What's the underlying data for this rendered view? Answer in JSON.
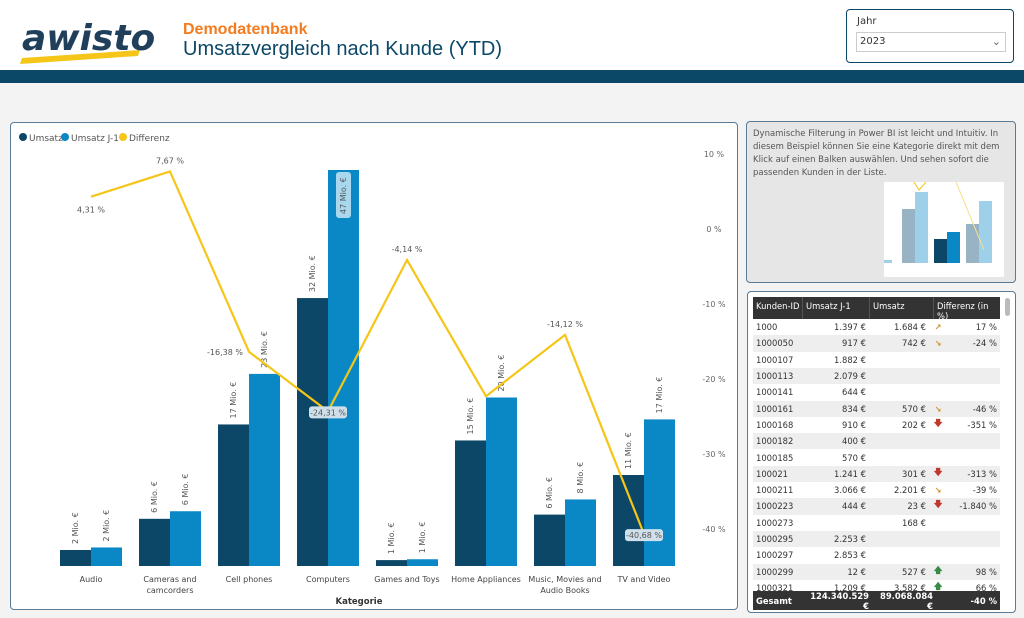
{
  "header": {
    "logo_text": "awisto",
    "subtitle": "Demodatenbank",
    "title": "Umsatzvergleich nach Kunde (YTD)"
  },
  "slicer": {
    "label": "Jahr",
    "value": "2023"
  },
  "info": {
    "text": "Dynamische Filterung in Power BI ist leicht und Intuitiv. In diesem Beispiel können Sie eine Kategorie direkt mit dem Klick auf einen Balken auswählen. Und sehen sofort die passenden Kunden in der Liste."
  },
  "colors": {
    "umsatz": "#0d4767",
    "umsatz_j1": "#0a88c6",
    "differenz": "#f5c518",
    "header_bar": "#0b4868",
    "accent": "#f47c20"
  },
  "chart_data": {
    "type": "bar+line",
    "xlabel": "Kategorie",
    "legend": [
      "Umsatz",
      "Umsatz J-1",
      "Differenz"
    ],
    "legend_position": "top-left",
    "categories": [
      "Audio",
      "Cameras and camcorders",
      "Cell phones",
      "Computers",
      "Games and Toys",
      "Home Appliances",
      "Music, Movies and Audio Books",
      "TV and Video"
    ],
    "series": [
      {
        "name": "Umsatz",
        "unit": "Mio. €",
        "values": [
          1.9,
          5.6,
          16.8,
          31.8,
          0.7,
          14.9,
          6.1,
          10.8
        ],
        "labels": [
          "2 Mio. €",
          "6 Mio. €",
          "17 Mio. €",
          "32 Mio. €",
          "1 Mio. €",
          "15 Mio. €",
          "6 Mio. €",
          "11 Mio. €"
        ]
      },
      {
        "name": "Umsatz J-1",
        "unit": "Mio. €",
        "values": [
          2.2,
          6.5,
          22.8,
          47,
          0.8,
          20,
          7.9,
          17.4
        ],
        "labels": [
          "2 Mio. €",
          "6 Mio. €",
          "23 Mio. €",
          "47 Mio. €",
          "1 Mio. €",
          "20 Mio. €",
          "8 Mio. €",
          "17 Mio. €"
        ]
      },
      {
        "name": "Differenz",
        "unit": "%",
        "axis": "right",
        "values": [
          4.31,
          7.67,
          -16.38,
          -24.31,
          -4.14,
          -22.3,
          -14.12,
          -40.68
        ],
        "labels": [
          "4,31 %",
          "7,67 %",
          "-16,38 %",
          "-24,31 %",
          "-4,14 %",
          "",
          "-14,12 %",
          "-40,68 %"
        ]
      }
    ],
    "y_bar_range": [
      0,
      47
    ],
    "y_right_range": [
      -45,
      13
    ],
    "y_right_ticks": [
      10,
      0,
      -10,
      -20,
      -30,
      -40
    ],
    "y_right_tick_labels": [
      "10 %",
      "0 %",
      "-10 %",
      "-20 %",
      "-30 %",
      "-40 %"
    ]
  },
  "table": {
    "columns": [
      "Kunden-ID",
      "Umsatz J-1",
      "Umsatz",
      "Differenz (in %)"
    ],
    "rows": [
      [
        "1000",
        "1.397 €",
        "1.684 €",
        "up-right",
        "17 %"
      ],
      [
        "1000050",
        "917 €",
        "742 €",
        "down-right",
        "-24 %"
      ],
      [
        "1000107",
        "1.882 €",
        "",
        "",
        ""
      ],
      [
        "1000113",
        "2.079 €",
        "",
        "",
        ""
      ],
      [
        "1000141",
        "644 €",
        "",
        "",
        ""
      ],
      [
        "1000161",
        "834 €",
        "570 €",
        "down-right",
        "-46 %"
      ],
      [
        "1000168",
        "910 €",
        "202 €",
        "down",
        "-351 %"
      ],
      [
        "1000182",
        "400 €",
        "",
        "",
        ""
      ],
      [
        "1000185",
        "570 €",
        "",
        "",
        ""
      ],
      [
        "100021",
        "1.241 €",
        "301 €",
        "down",
        "-313 %"
      ],
      [
        "1000211",
        "3.066 €",
        "2.201 €",
        "down-right",
        "-39 %"
      ],
      [
        "1000223",
        "444 €",
        "23 €",
        "down",
        "-1.840 %"
      ],
      [
        "1000273",
        "",
        "168 €",
        "",
        ""
      ],
      [
        "1000295",
        "2.253 €",
        "",
        "",
        ""
      ],
      [
        "1000297",
        "2.853 €",
        "",
        "",
        ""
      ],
      [
        "1000299",
        "12 €",
        "527 €",
        "up",
        "98 %"
      ],
      [
        "1000321",
        "1.209 €",
        "3.582 €",
        "up",
        "66 %"
      ]
    ],
    "total": [
      "Gesamt",
      "124.340.529 €",
      "89.068.084 €",
      "-40 %"
    ]
  }
}
